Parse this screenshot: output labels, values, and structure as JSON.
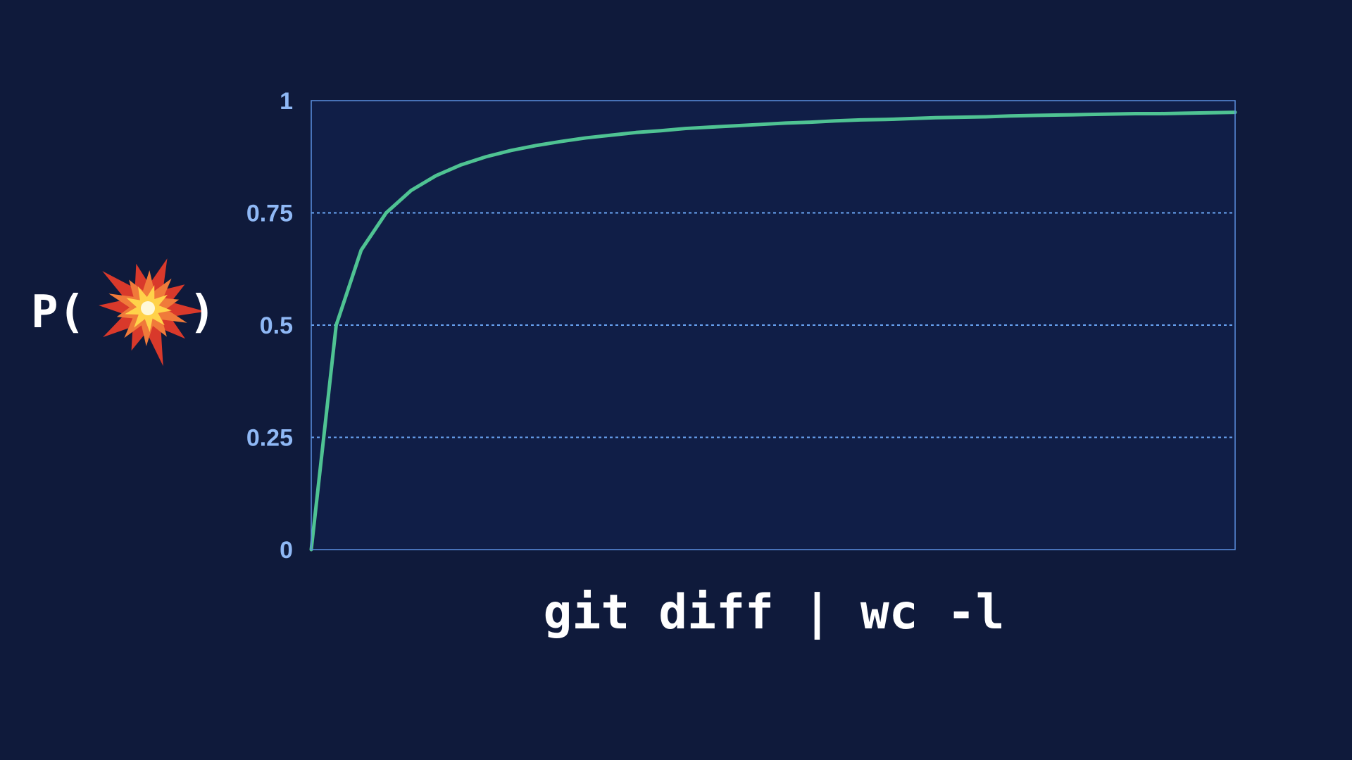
{
  "colors": {
    "background": "#0f1a3b",
    "plot_background": "#101e47",
    "plot_border": "#5b8fe0",
    "grid": "#6aa5f5",
    "tick_label": "#8fb8f5",
    "line": "#4fc393",
    "label_text": "#ffffff"
  },
  "chart_data": {
    "type": "line",
    "xlabel": "git diff | wc -l",
    "ylabel_prefix": "P(",
    "ylabel_icon": "collision-icon",
    "ylabel_suffix": ")",
    "xlim": [
      0,
      37
    ],
    "ylim": [
      0,
      1
    ],
    "yticks": [
      {
        "value": 0,
        "label": "0"
      },
      {
        "value": 0.25,
        "label": "0.25"
      },
      {
        "value": 0.5,
        "label": "0.5"
      },
      {
        "value": 0.75,
        "label": "0.75"
      },
      {
        "value": 1,
        "label": "1"
      }
    ],
    "grid": true,
    "grid_style": "dotted horizontal",
    "series": [
      {
        "x": [
          0,
          1,
          2,
          3,
          4,
          5,
          6,
          7,
          8,
          9,
          10,
          11,
          12,
          13,
          14,
          15,
          16,
          17,
          18,
          19,
          20,
          21,
          22,
          23,
          24,
          25,
          26,
          27,
          28,
          29,
          30,
          31,
          32,
          33,
          34,
          35,
          36,
          37
        ],
        "values": [
          0,
          0.5,
          0.667,
          0.75,
          0.8,
          0.833,
          0.857,
          0.875,
          0.889,
          0.9,
          0.909,
          0.917,
          0.923,
          0.929,
          0.933,
          0.938,
          0.941,
          0.944,
          0.947,
          0.95,
          0.952,
          0.955,
          0.957,
          0.958,
          0.96,
          0.962,
          0.963,
          0.964,
          0.966,
          0.967,
          0.968,
          0.969,
          0.97,
          0.971,
          0.971,
          0.972,
          0.973,
          0.974
        ]
      }
    ]
  }
}
